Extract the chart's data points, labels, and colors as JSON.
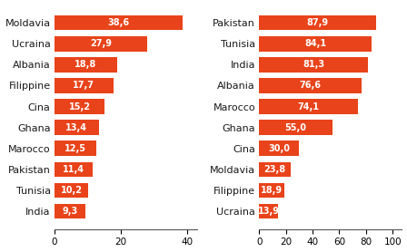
{
  "left_categories": [
    "Moldavia",
    "Ucraina",
    "Albania",
    "Filippine",
    "Cina",
    "Ghana",
    "Marocco",
    "Pakistan",
    "Tunisia",
    "India"
  ],
  "left_values": [
    38.6,
    27.9,
    18.8,
    17.7,
    15.2,
    13.4,
    12.5,
    11.4,
    10.2,
    9.3
  ],
  "right_categories": [
    "Pakistan",
    "Tunisia",
    "India",
    "Albania",
    "Marocco",
    "Ghana",
    "Cina",
    "Moldavia",
    "Filippine",
    "Ucraina"
  ],
  "right_values": [
    87.9,
    84.1,
    81.3,
    76.6,
    74.1,
    55.0,
    30.0,
    23.8,
    18.9,
    13.9
  ],
  "bar_color": "#e8431a",
  "text_color": "#ffffff",
  "label_color": "#1a1a1a",
  "left_xlim": [
    0,
    43
  ],
  "right_xlim": [
    0,
    107
  ],
  "left_xticks": [
    0,
    20,
    40
  ],
  "right_xticks": [
    0,
    20,
    40,
    60,
    80,
    100
  ],
  "bar_height": 0.72,
  "fontsize_bar_label": 7.0,
  "fontsize_cat_label": 8.0,
  "fontsize_tick": 7.5,
  "fig_width": 4.48,
  "fig_height": 2.78,
  "dpi": 100
}
